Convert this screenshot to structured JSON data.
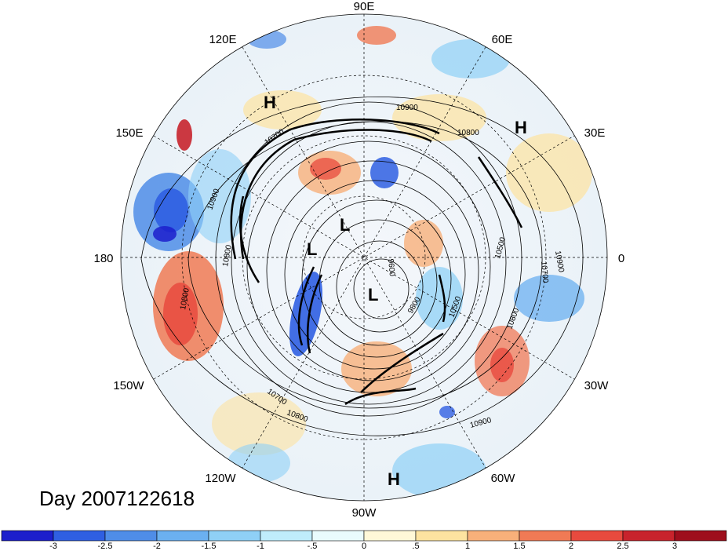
{
  "map": {
    "longitude_labels": [
      "90E",
      "60E",
      "30E",
      "0",
      "30W",
      "60W",
      "90W",
      "120W",
      "150W",
      "180",
      "150E",
      "120E"
    ],
    "highs": [
      "H",
      "H",
      "H"
    ],
    "lows": [
      "L",
      "L",
      "L"
    ],
    "contour_labels": [
      "10900",
      "10800",
      "10900",
      "10800",
      "10900",
      "10700",
      "10500",
      "10700",
      "10800",
      "10500",
      "9800",
      "9600",
      "10700",
      "10800",
      "10900",
      "10800"
    ]
  },
  "day_label": "Day 2007122618",
  "colorbar": {
    "tick_labels": [
      "-3",
      "-2.5",
      "-2",
      "-1.5",
      "-1",
      "-.5",
      "0",
      ".5",
      "1",
      "1.5",
      "2",
      "2.5",
      "3"
    ],
    "colors": [
      "#1c1fcc",
      "#2f5fe2",
      "#4f8de8",
      "#6bb0f0",
      "#8fd0f6",
      "#bfecfb",
      "#e9fbfd",
      "#fff8d8",
      "#fde3a0",
      "#f8b07a",
      "#f07a55",
      "#e84a3e",
      "#c8232c",
      "#9e0e1c"
    ]
  }
}
